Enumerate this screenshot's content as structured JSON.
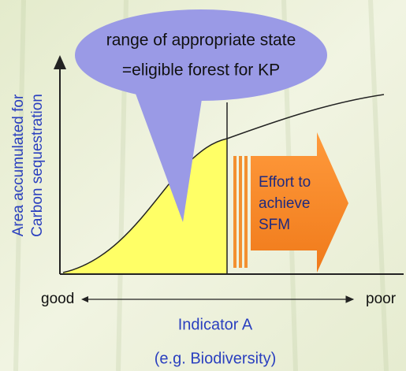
{
  "bubble": {
    "line1": "range of appropriate state",
    "line2": "=eligible forest for KP"
  },
  "y_axis": {
    "line1": "Area accumulated for",
    "line2": "Carbon sequestration"
  },
  "arrow": {
    "line1": "Effort to",
    "line2": "achieve",
    "line3": "SFM"
  },
  "x_axis": {
    "left": "good",
    "right": "poor",
    "title": "Indicator A",
    "subtitle": "(e.g. Biodiversity)"
  }
}
